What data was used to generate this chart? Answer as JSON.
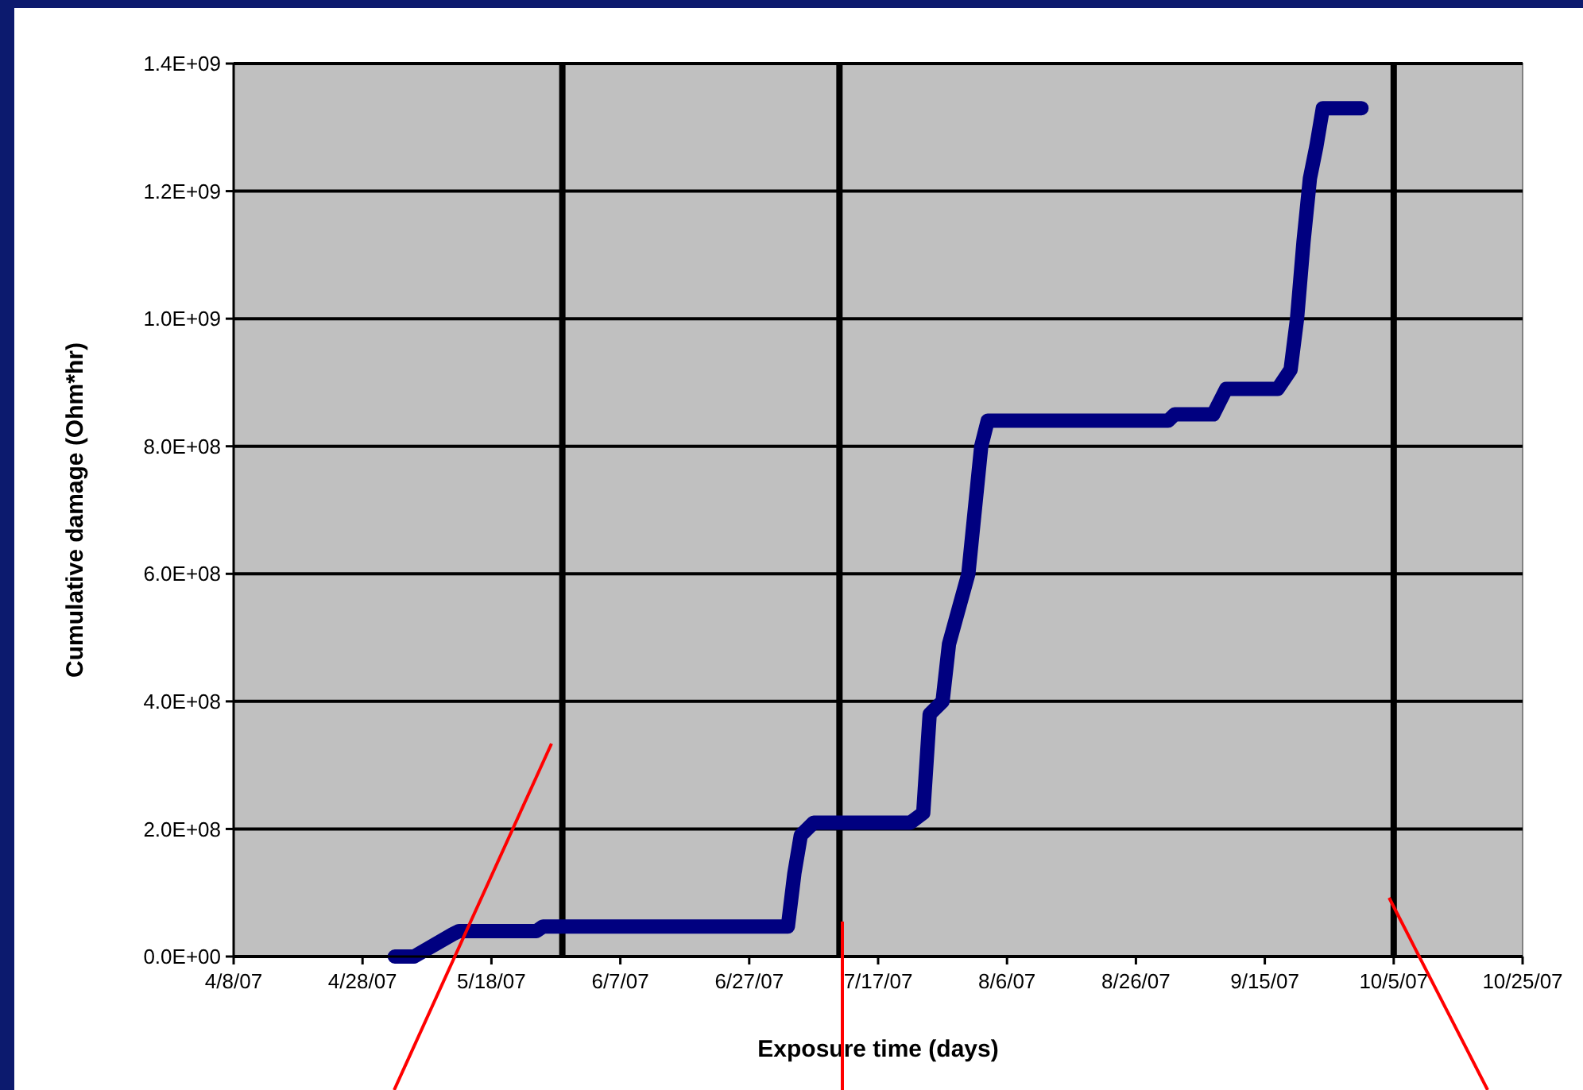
{
  "chart_data": {
    "type": "line",
    "xlabel": "Exposure time (days)",
    "ylabel": "Cumulative damage (Ohm*hr)",
    "x": [
      "2007-05-03",
      "2007-05-06",
      "2007-05-12",
      "2007-05-13",
      "2007-05-25",
      "2007-05-26",
      "2007-07-03",
      "2007-07-04",
      "2007-07-05",
      "2007-07-07",
      "2007-07-22",
      "2007-07-24",
      "2007-07-25",
      "2007-07-27",
      "2007-07-28",
      "2007-07-31",
      "2007-08-02",
      "2007-08-03",
      "2007-08-31",
      "2007-09-01",
      "2007-09-07",
      "2007-09-09",
      "2007-09-17",
      "2007-09-19",
      "2007-09-20",
      "2007-09-21",
      "2007-09-22",
      "2007-09-23",
      "2007-09-24",
      "2007-09-30"
    ],
    "series": [
      {
        "color": "#000080",
        "values": [
          0,
          0,
          35000000,
          40000000,
          40000000,
          47000000,
          47000000,
          130000000,
          190000000,
          210000000,
          210000000,
          225000000,
          380000000,
          400000000,
          490000000,
          600000000,
          800000000,
          840000000,
          840000000,
          850000000,
          850000000,
          890000000,
          890000000,
          920000000,
          1000000000,
          1120000000,
          1220000000,
          1270000000,
          1330000000,
          1330000000
        ]
      }
    ],
    "xlim": [
      "2007-04-08",
      "2007-10-25"
    ],
    "xticks": [
      {
        "value": "2007-04-08",
        "label": "4/8/07"
      },
      {
        "value": "2007-04-28",
        "label": "4/28/07"
      },
      {
        "value": "2007-05-18",
        "label": "5/18/07"
      },
      {
        "value": "2007-06-07",
        "label": "6/7/07"
      },
      {
        "value": "2007-06-27",
        "label": "6/27/07"
      },
      {
        "value": "2007-07-17",
        "label": "7/17/07"
      },
      {
        "value": "2007-08-06",
        "label": "8/6/07"
      },
      {
        "value": "2007-08-26",
        "label": "8/26/07"
      },
      {
        "value": "2007-09-15",
        "label": "9/15/07"
      },
      {
        "value": "2007-10-05",
        "label": "10/5/07"
      },
      {
        "value": "2007-10-25",
        "label": "10/25/07"
      }
    ],
    "ylim": [
      0,
      1400000000
    ],
    "yticks": [
      {
        "value": 0,
        "label": "0.0E+00"
      },
      {
        "value": 200000000,
        "label": "2.0E+08"
      },
      {
        "value": 400000000,
        "label": "4.0E+08"
      },
      {
        "value": 600000000,
        "label": "6.0E+08"
      },
      {
        "value": 800000000,
        "label": "8.0E+08"
      },
      {
        "value": 1000000000,
        "label": "1.0E+09"
      },
      {
        "value": 1200000000,
        "label": "1.2E+09"
      },
      {
        "value": 1400000000,
        "label": "1.4E+09"
      }
    ],
    "grid": "y",
    "line_style": "solid",
    "ref_lines": [
      {
        "axis": "x",
        "value": "2007-05-29",
        "color": "#000000"
      },
      {
        "axis": "x",
        "value": "2007-07-11",
        "color": "#000000"
      },
      {
        "axis": "x",
        "value": "2007-10-05",
        "color": "#000000"
      }
    ]
  }
}
